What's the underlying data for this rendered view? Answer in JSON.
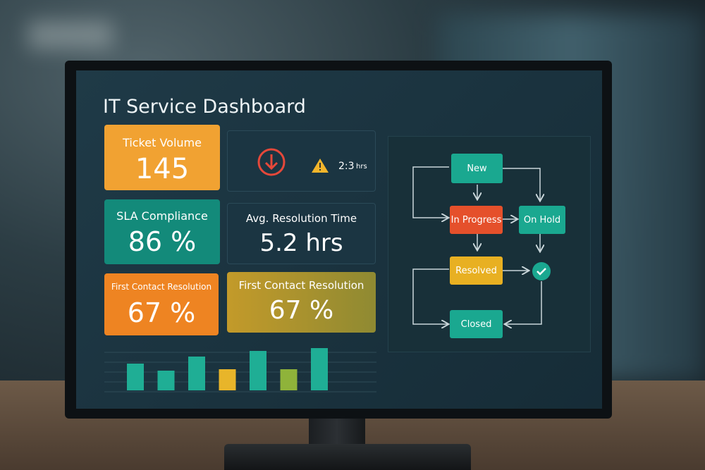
{
  "header": {
    "title": "IT Service Dashboard"
  },
  "cards": [
    {
      "label": "Ticket Volume",
      "value": "145"
    },
    {
      "value": "2:3",
      "unit": "hrs"
    },
    {
      "label": "SLA Compliance",
      "value": "86 %"
    },
    {
      "label": "Avg. Resolution Time",
      "value": "5.2 hrs"
    },
    {
      "label": "First Contact Resolution",
      "value": "67 %"
    },
    {
      "label": "First Contact Resolution",
      "value": "67 %"
    }
  ],
  "workflow": {
    "nodes": [
      {
        "label": "New"
      },
      {
        "label": "In Progress"
      },
      {
        "label": "On Hold"
      },
      {
        "label": "Resolved"
      },
      {
        "label": "Closed"
      }
    ]
  },
  "mini_chart": {
    "type": "bar",
    "values": [
      38,
      28,
      48,
      30,
      56,
      30,
      60
    ],
    "colors": [
      "#1fae95",
      "#1fae95",
      "#1fae95",
      "#e8b52a",
      "#1fae95",
      "#8fb33a",
      "#1fae95"
    ]
  }
}
